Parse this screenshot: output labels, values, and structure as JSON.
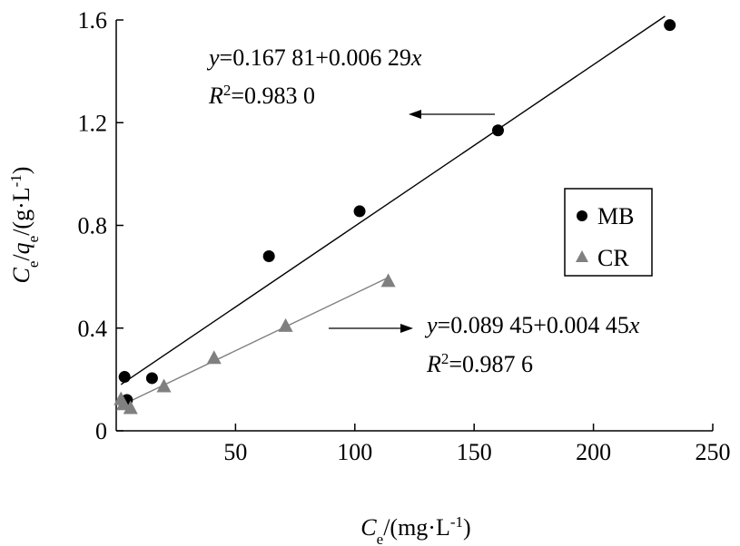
{
  "chart_data": {
    "type": "scatter",
    "xlabel": {
      "main": "C",
      "sub": "e",
      "unit_prefix": "/(mg·L",
      "sup": "-1",
      "unit_suffix": ")"
    },
    "ylabel": {
      "c": "C",
      "c_sub": "e",
      "slash": "/",
      "q": "q",
      "q_sub": "e",
      "unit_prefix": "/(g·L",
      "sup": "-1",
      "unit_suffix": ")"
    },
    "xlim": [
      0,
      250
    ],
    "ylim": [
      0,
      1.6
    ],
    "xticks": [
      {
        "value": 50,
        "label": "50"
      },
      {
        "value": 100,
        "label": "100"
      },
      {
        "value": 150,
        "label": "150"
      },
      {
        "value": 200,
        "label": "200"
      },
      {
        "value": 250,
        "label": "250"
      }
    ],
    "yticks": [
      {
        "value": 0,
        "label": "0"
      },
      {
        "value": 0.4,
        "label": "0.4"
      },
      {
        "value": 0.8,
        "label": "0.8"
      },
      {
        "value": 1.2,
        "label": "1.2"
      },
      {
        "value": 1.6,
        "label": "1.6"
      }
    ],
    "grid": false,
    "legend_position": "right",
    "series": [
      {
        "name": "MB",
        "marker": "circle",
        "color": "#000000",
        "points": [
          [
            3.5,
            0.21
          ],
          [
            4.5,
            0.12
          ],
          [
            15,
            0.205
          ],
          [
            64,
            0.68
          ],
          [
            102,
            0.855
          ],
          [
            160,
            1.17
          ],
          [
            232,
            1.58
          ]
        ],
        "fit": {
          "intercept": 0.16781,
          "slope": 0.00629,
          "x_range": [
            2,
            230
          ]
        },
        "equation": {
          "y": "y",
          "rhs": "=0.167 81+0.006 29",
          "x": "x",
          "r": "R",
          "r_sup": "2",
          "r_value": "=0.983 0"
        }
      },
      {
        "name": "CR",
        "marker": "triangle",
        "color": "#808080",
        "points": [
          [
            2,
            0.125
          ],
          [
            3,
            0.105
          ],
          [
            6,
            0.09
          ],
          [
            20,
            0.175
          ],
          [
            41,
            0.285
          ],
          [
            71,
            0.41
          ],
          [
            114,
            0.585
          ]
        ],
        "fit": {
          "intercept": 0.08945,
          "slope": 0.00445,
          "x_range": [
            2,
            114
          ]
        },
        "equation": {
          "y": "y",
          "rhs": "=0.089 45+0.004 45",
          "x": "x",
          "r": "R",
          "r_sup": "2",
          "r_value": "=0.987 6"
        }
      }
    ]
  }
}
